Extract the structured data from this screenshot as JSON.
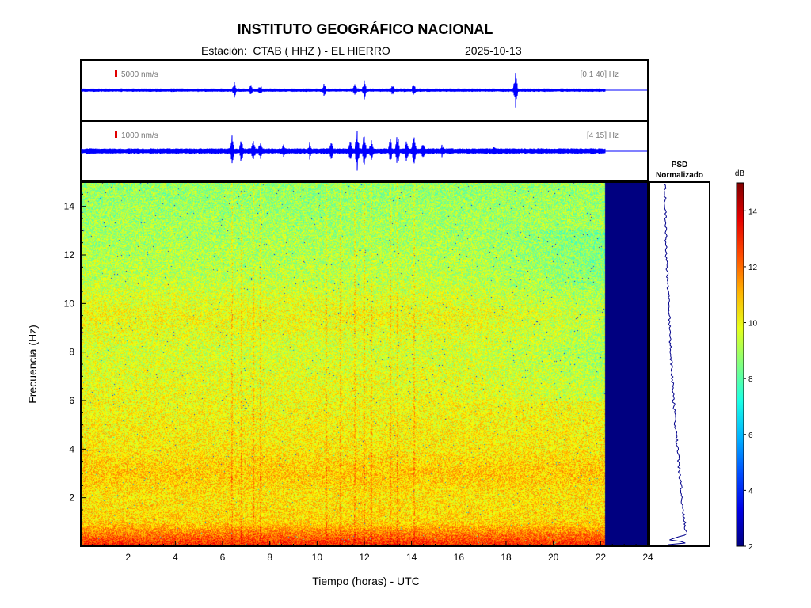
{
  "title": "INSTITUTO GEOGRÁFICO NACIONAL",
  "station_label": "Estación:  CTAB ( HHZ ) - EL HIERRO",
  "date": "2025-10-13",
  "colors": {
    "waveform": "#0000ff",
    "psd_line": "#00008b",
    "scale_bar": "#e00000",
    "background": "#ffffff"
  },
  "chart_data": [
    {
      "type": "line",
      "panel": "seismogram-broadband",
      "scale_label": "5000 nm/s",
      "filter_label": "[0.1 40] Hz",
      "x_units": "hours UTC",
      "xlim": [
        0,
        24
      ],
      "data_end_hour": 22.2,
      "bursts": [
        {
          "hour": 6.5,
          "amp": 0.5
        },
        {
          "hour": 7.2,
          "amp": 0.35
        },
        {
          "hour": 7.6,
          "amp": 0.3
        },
        {
          "hour": 10.3,
          "amp": 0.4
        },
        {
          "hour": 11.6,
          "amp": 0.45
        },
        {
          "hour": 12.0,
          "amp": 0.55
        },
        {
          "hour": 13.2,
          "amp": 0.35
        },
        {
          "hour": 14.1,
          "amp": 0.4
        },
        {
          "hour": 18.4,
          "amp": 0.95
        }
      ]
    },
    {
      "type": "line",
      "panel": "seismogram-filtered",
      "scale_label": "1000 nm/s",
      "filter_label": "[4 15] Hz",
      "x_units": "hours UTC",
      "xlim": [
        0,
        24
      ],
      "data_end_hour": 22.2,
      "bursts": [
        {
          "hour": 6.4,
          "amp": 0.85
        },
        {
          "hour": 6.8,
          "amp": 0.6
        },
        {
          "hour": 7.3,
          "amp": 0.55
        },
        {
          "hour": 7.6,
          "amp": 0.5
        },
        {
          "hour": 8.6,
          "amp": 0.4
        },
        {
          "hour": 9.7,
          "amp": 0.45
        },
        {
          "hour": 10.6,
          "amp": 0.5
        },
        {
          "hour": 11.4,
          "amp": 0.6
        },
        {
          "hour": 11.7,
          "amp": 1.0
        },
        {
          "hour": 12.0,
          "amp": 0.9
        },
        {
          "hour": 12.3,
          "amp": 0.55
        },
        {
          "hour": 13.1,
          "amp": 0.6
        },
        {
          "hour": 13.4,
          "amp": 0.85
        },
        {
          "hour": 13.8,
          "amp": 0.55
        },
        {
          "hour": 14.1,
          "amp": 0.75
        },
        {
          "hour": 14.5,
          "amp": 0.5
        },
        {
          "hour": 15.3,
          "amp": 0.35
        },
        {
          "hour": 17.5,
          "amp": 0.3
        }
      ]
    },
    {
      "type": "heatmap",
      "panel": "spectrogram",
      "xlabel": "Tiempo (horas) - UTC",
      "ylabel": "Frecuencia  (Hz)",
      "xlim": [
        0,
        24
      ],
      "ylim": [
        0,
        15
      ],
      "x_ticks": [
        2,
        4,
        6,
        8,
        10,
        12,
        14,
        16,
        18,
        20,
        22,
        24
      ],
      "y_ticks": [
        2,
        4,
        6,
        8,
        10,
        12,
        14
      ],
      "data_end_hour": 22.2,
      "no_data_level_db": 2,
      "colorbar": {
        "label": "dB",
        "range": [
          2,
          15
        ],
        "ticks": [
          2,
          4,
          6,
          8,
          10,
          12,
          14
        ],
        "colormap": "jet"
      },
      "level_profile_db": [
        {
          "hz": 0,
          "db": 13.0
        },
        {
          "hz": 0.5,
          "db": 11.8
        },
        {
          "hz": 1,
          "db": 10.6
        },
        {
          "hz": 2,
          "db": 10.4
        },
        {
          "hz": 3,
          "db": 10.8
        },
        {
          "hz": 4,
          "db": 10.3
        },
        {
          "hz": 6,
          "db": 10.0
        },
        {
          "hz": 8,
          "db": 9.6
        },
        {
          "hz": 9.5,
          "db": 10.0
        },
        {
          "hz": 11,
          "db": 9.3
        },
        {
          "hz": 13,
          "db": 9.0
        },
        {
          "hz": 15,
          "db": 8.8
        }
      ],
      "event_hours": [
        6.4,
        6.8,
        7.3,
        7.6,
        10.4,
        11.0,
        11.6,
        12.0,
        12.3,
        13.1,
        13.4,
        14.1
      ]
    },
    {
      "type": "line",
      "panel": "psd",
      "title_line1": "PSD",
      "title_line2": "Normalizado",
      "ylim": [
        0,
        15
      ],
      "points": [
        {
          "hz": 0.05,
          "value": 0.05
        },
        {
          "hz": 0.15,
          "value": 0.55
        },
        {
          "hz": 0.25,
          "value": 0.15
        },
        {
          "hz": 0.5,
          "value": 0.45
        },
        {
          "hz": 1,
          "value": 0.42
        },
        {
          "hz": 2,
          "value": 0.37
        },
        {
          "hz": 3,
          "value": 0.33
        },
        {
          "hz": 4,
          "value": 0.29
        },
        {
          "hz": 6,
          "value": 0.22
        },
        {
          "hz": 8,
          "value": 0.17
        },
        {
          "hz": 10,
          "value": 0.13
        },
        {
          "hz": 12,
          "value": 0.09
        },
        {
          "hz": 14,
          "value": 0.07
        },
        {
          "hz": 15,
          "value": 0.06
        }
      ]
    }
  ]
}
